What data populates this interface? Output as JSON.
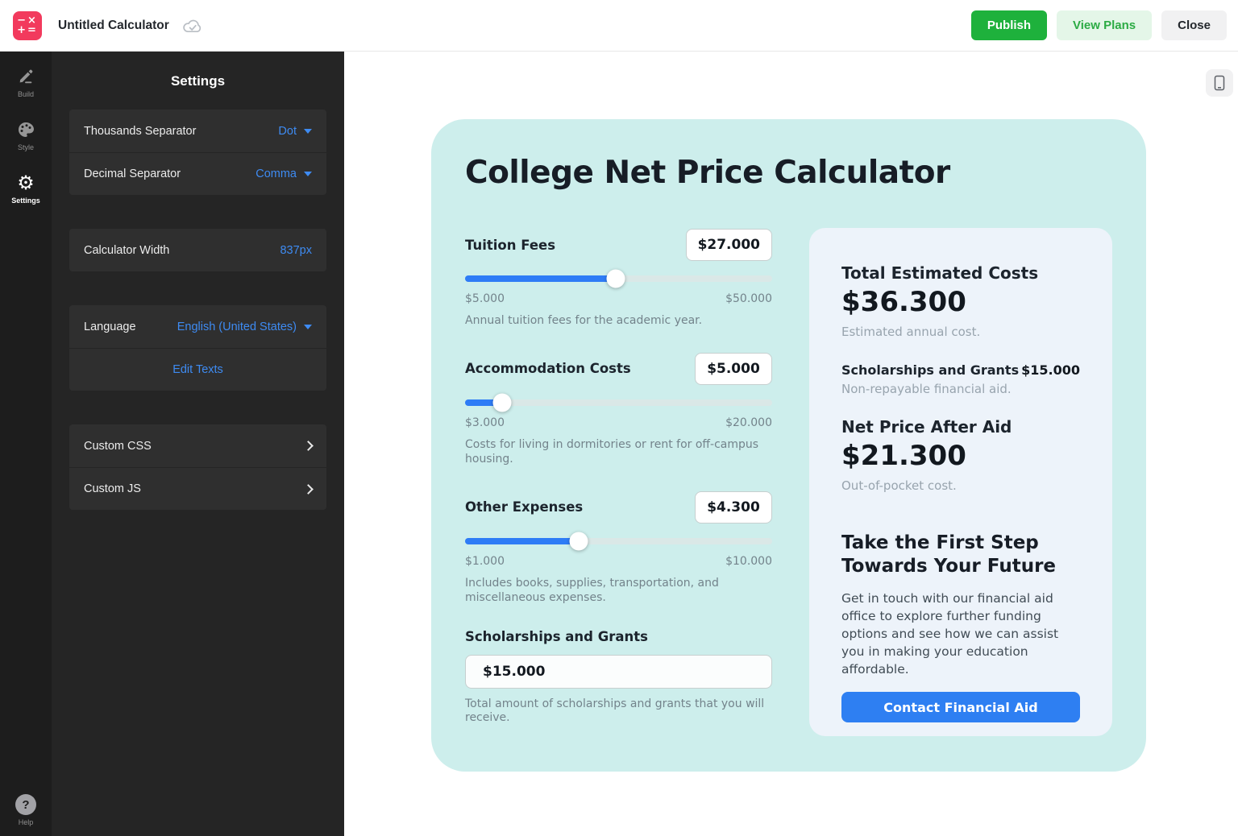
{
  "topbar": {
    "title": "Untitled Calculator",
    "publish_label": "Publish",
    "view_plans_label": "View Plans",
    "close_label": "Close"
  },
  "nav": {
    "build_label": "Build",
    "style_label": "Style",
    "settings_label": "Settings",
    "help_label": "Help"
  },
  "glyphs": {
    "logo_top": "−×",
    "logo_bottom": "+=",
    "gear": "⚙",
    "question": "?"
  },
  "settings_panel": {
    "title": "Settings",
    "thousands": {
      "label": "Thousands Separator",
      "value": "Dot"
    },
    "decimal": {
      "label": "Decimal Separator",
      "value": "Comma"
    },
    "width": {
      "label": "Calculator Width",
      "value": "837px"
    },
    "language": {
      "label": "Language",
      "value": "English (United States)"
    },
    "edit_texts_label": "Edit Texts",
    "custom_css_label": "Custom CSS",
    "custom_js_label": "Custom JS"
  },
  "calculator": {
    "title": "College Net Price Calculator",
    "sliders": [
      {
        "label": "Tuition Fees",
        "value": "$27.000",
        "min": "$5.000",
        "max": "$50.000",
        "percent": 49,
        "description": "Annual tuition fees for the academic year."
      },
      {
        "label": "Accommodation Costs",
        "value": "$5.000",
        "min": "$3.000",
        "max": "$20.000",
        "percent": 12,
        "description": "Costs for living in dormitories or rent for off-campus housing."
      },
      {
        "label": "Other Expenses",
        "value": "$4.300",
        "min": "$1.000",
        "max": "$10.000",
        "percent": 37,
        "description": "Includes books, supplies, transportation, and miscellaneous expenses."
      }
    ],
    "scholarships": {
      "label": "Scholarships and Grants",
      "value": "$15.000",
      "description": "Total amount of scholarships and grants that you will receive."
    },
    "summary": {
      "total_label": "Total Estimated Costs",
      "total_value": "$36.300",
      "total_note": "Estimated annual cost.",
      "scholarships_label": "Scholarships and Grants",
      "scholarships_value": "$15.000",
      "scholarships_note": "Non-repayable financial aid.",
      "net_label": "Net Price After Aid",
      "net_value": "$21.300",
      "net_note": "Out-of-pocket cost.",
      "cta_title": "Take the First Step Towards Your Future",
      "cta_text": "Get in touch with our financial aid office to explore further funding options and see how we can assist you in making your education affordable.",
      "cta_button_label": "Contact Financial Aid"
    }
  },
  "colors": {
    "accent_blue": "#2e7cf6",
    "mint_background": "#cdeeec",
    "summary_background": "#edf3fa",
    "publish_green": "#1eb13c",
    "view_plans_green": "#2cab44",
    "logo_pink": "#f23a5d",
    "panel_link_blue": "#3e8bf2",
    "panel_background": "#252525"
  }
}
